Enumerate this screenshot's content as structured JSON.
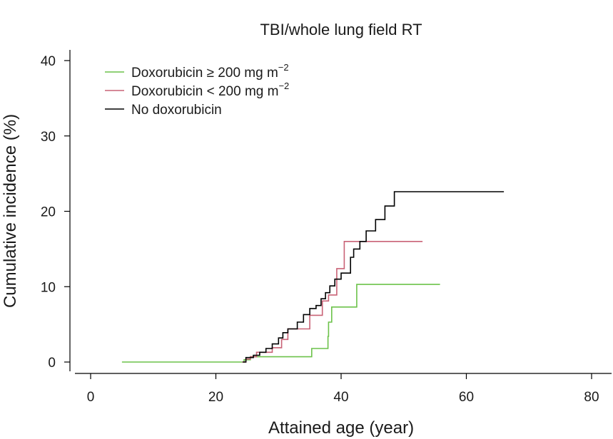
{
  "chart_data": {
    "type": "line",
    "title": "TBI/whole lung field RT",
    "xlabel": "Attained age (year)",
    "ylabel": "Cumulative incidence (%)",
    "xlim": [
      0,
      80
    ],
    "ylim": [
      0,
      40
    ],
    "x_ticks": [
      0,
      20,
      40,
      60,
      80
    ],
    "y_ticks": [
      0,
      10,
      20,
      30,
      40
    ],
    "grid": false,
    "legend_position": "top-left",
    "series": [
      {
        "name": "Doxorubicin ≥ 200 mg m",
        "name_sup": "−2",
        "color": "#6cc24a",
        "step": true,
        "x": [
          5,
          24.5,
          25.5,
          35.2,
          35.3,
          37.9,
          38.0,
          38.5,
          42.5,
          55.8
        ],
        "y": [
          0,
          0.3,
          0.7,
          0.7,
          1.8,
          3.4,
          5.3,
          7.3,
          10.3,
          10.3
        ]
      },
      {
        "name": "Doxorubicin < 200 mg m",
        "name_sup": "−2",
        "color": "#c96276",
        "step": true,
        "x": [
          24.2,
          24.8,
          25.5,
          26.5,
          29.0,
          30.5,
          31.5,
          33.5,
          35.0,
          37.0,
          38.0,
          39.3,
          40.5,
          53.0
        ],
        "y": [
          0,
          0.4,
          0.7,
          1.3,
          1.9,
          3.0,
          4.4,
          4.4,
          6.2,
          8.1,
          8.9,
          12.4,
          16.0,
          16.0
        ]
      },
      {
        "name": "No doxorubicin",
        "name_sup": "",
        "color": "#000000",
        "step": true,
        "x": [
          24.3,
          24.8,
          26.0,
          27.0,
          28.0,
          29.0,
          30.0,
          30.7,
          31.5,
          33.0,
          34.0,
          35.0,
          36.0,
          36.8,
          37.5,
          38.2,
          39.0,
          40.0,
          41.5,
          42.0,
          43.0,
          44.0,
          45.5,
          47.0,
          48.5,
          66.0
        ],
        "y": [
          0,
          0.6,
          0.9,
          1.3,
          1.8,
          2.4,
          3.2,
          3.9,
          4.4,
          5.3,
          6.3,
          7.1,
          7.5,
          8.4,
          9.2,
          10.1,
          11.0,
          11.8,
          13.9,
          15.0,
          16.0,
          17.4,
          18.9,
          20.7,
          22.6,
          22.6
        ]
      }
    ]
  }
}
